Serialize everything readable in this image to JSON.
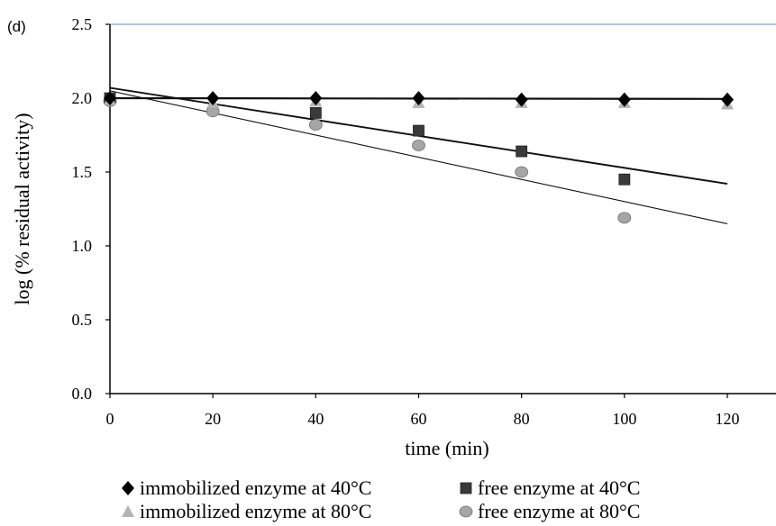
{
  "panel_label": "(d)",
  "chart_data": {
    "type": "scatter",
    "title": "",
    "xlabel": "time (min)",
    "ylabel": "log (% residual activity)",
    "xlim": [
      0,
      125
    ],
    "ylim": [
      0,
      2.5
    ],
    "x_ticks": [
      "0",
      "20",
      "40",
      "60",
      "80",
      "100",
      "120"
    ],
    "y_ticks": [
      "0.0",
      "0.5",
      "1.0",
      "1.5",
      "2.0",
      "2.5"
    ],
    "grid": false,
    "legend_position": "bottom",
    "series": [
      {
        "name": "immobilized enzyme at 40°C",
        "marker": "diamond",
        "color": "#000000",
        "x": [
          0,
          20,
          40,
          60,
          80,
          100,
          120
        ],
        "y": [
          2.0,
          2.0,
          2.0,
          2.0,
          1.99,
          1.99,
          1.99
        ],
        "trend": [
          [
            0,
            2.0
          ],
          [
            120,
            1.995
          ]
        ]
      },
      {
        "name": "free enzyme at 40°C",
        "marker": "square",
        "color": "#3a3a3a",
        "x": [
          0,
          40,
          60,
          80,
          100
        ],
        "y": [
          2.0,
          1.9,
          1.78,
          1.64,
          1.45
        ],
        "trend": [
          [
            0,
            2.07
          ],
          [
            120,
            1.42
          ]
        ]
      },
      {
        "name": "immobilized enzyme at 80°C",
        "marker": "triangle",
        "color": "#b4b4b4",
        "x": [
          0,
          20,
          40,
          60,
          80,
          100,
          120
        ],
        "y": [
          1.99,
          1.97,
          1.98,
          1.97,
          1.97,
          1.97,
          1.96
        ],
        "trend": []
      },
      {
        "name": "free enzyme at 80°C",
        "marker": "circle",
        "color": "#a6a6a6",
        "x": [
          0,
          20,
          40,
          60,
          80,
          100
        ],
        "y": [
          1.98,
          1.91,
          1.82,
          1.68,
          1.5,
          1.19
        ],
        "trend": [
          [
            0,
            2.05
          ],
          [
            120,
            1.15
          ]
        ]
      }
    ]
  }
}
